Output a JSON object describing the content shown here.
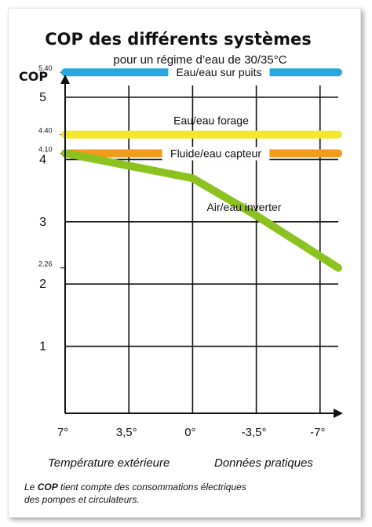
{
  "chart_data": {
    "type": "line",
    "title": "COP des différents systèmes",
    "subtitle": "pour un régime d’eau de 30/35°C",
    "ylabel": "COP",
    "ylim": [
      0,
      5.6
    ],
    "yticks": [
      "1",
      "2",
      "3",
      "4",
      "5"
    ],
    "ytick_values": [
      1,
      2,
      3,
      4,
      5
    ],
    "x_categories": [
      "7°",
      "3,5°",
      "0°",
      "-3,5°",
      "-7°"
    ],
    "x_values": [
      7,
      3.5,
      0,
      -3.5,
      -7
    ],
    "xlim": [
      7,
      -8
    ],
    "grid": true,
    "series": [
      {
        "name": "Eau/eau sur puits",
        "color": "#27a6e0",
        "x": [
          7,
          -8
        ],
        "y": [
          5.4,
          5.4
        ],
        "value_label": "5.40"
      },
      {
        "name": "Eau/eau forage",
        "color": "#f4e62a",
        "x": [
          7,
          -8
        ],
        "y": [
          4.4,
          4.4
        ],
        "value_label": "4.40"
      },
      {
        "name": "Fluide/eau capteur",
        "color": "#f29a1b",
        "x": [
          7,
          -8
        ],
        "y": [
          4.1,
          4.1
        ],
        "value_label": "4.10"
      },
      {
        "name": "Air/eau inverter",
        "color": "#8cc21f",
        "x": [
          7,
          0,
          -3.5,
          -8
        ],
        "y": [
          4.1,
          3.7,
          3.1,
          2.26
        ],
        "value_label": "2.26"
      }
    ],
    "xlabel_left": "Température extérieure",
    "xlabel_right": "Données pratiques"
  },
  "note": {
    "bold": "COP",
    "line1_prefix": "Le ",
    "line1_suffix": " tient compte des consommations électriques",
    "line2": "des pompes et circulateurs."
  }
}
